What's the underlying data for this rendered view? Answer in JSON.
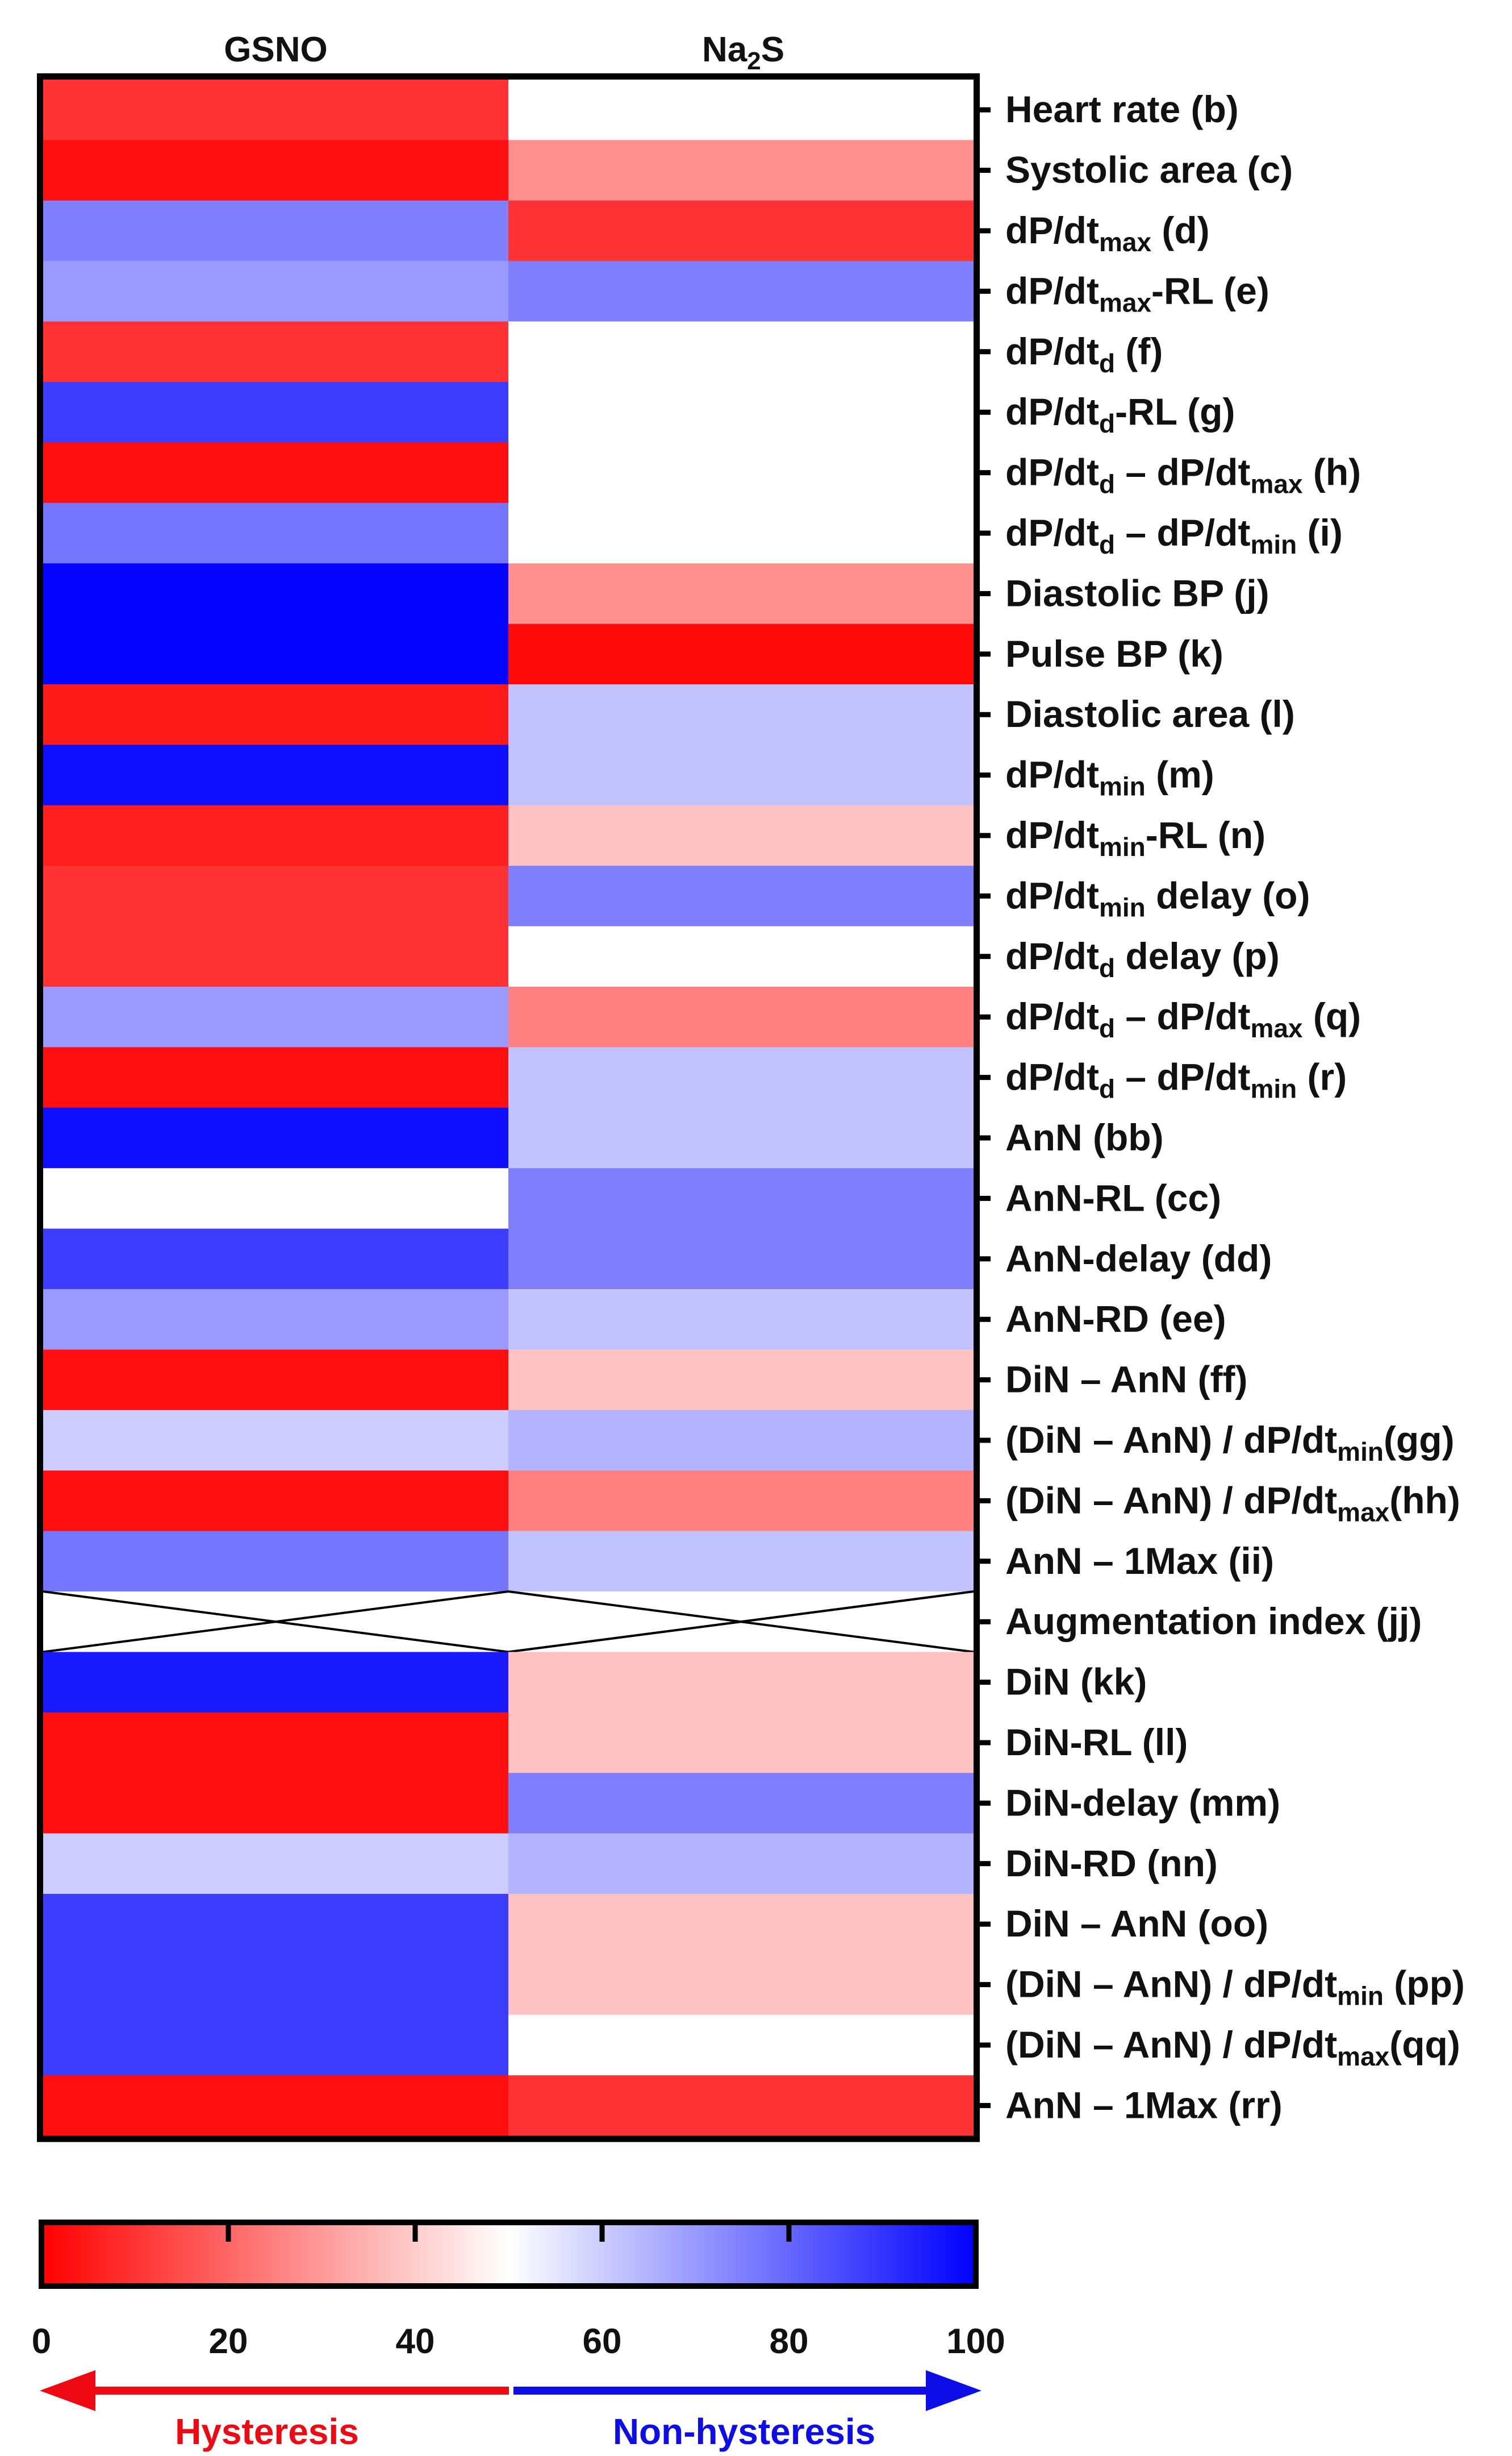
{
  "chart_data": {
    "type": "heatmap",
    "columns": [
      {
        "label": "GSNO",
        "parts": [
          {
            "t": "GSNO"
          }
        ]
      },
      {
        "label": "Na2S",
        "parts": [
          {
            "t": "Na"
          },
          {
            "t": "2",
            "sub": true
          },
          {
            "t": "S"
          }
        ]
      }
    ],
    "rows": [
      {
        "label": "Heart rate (b)",
        "parts": [
          {
            "t": "Heart rate (b)"
          }
        ],
        "values": [
          10,
          50
        ]
      },
      {
        "label": "Systolic area (c)",
        "parts": [
          {
            "t": "Systolic area (c)"
          }
        ],
        "values": [
          3,
          28
        ]
      },
      {
        "label": "dP/dtmax (d)",
        "parts": [
          {
            "t": "dP/dt"
          },
          {
            "t": "max",
            "sub": true
          },
          {
            "t": " (d)"
          }
        ],
        "values": [
          75,
          10
        ]
      },
      {
        "label": "dP/dtmax-RL (e)",
        "parts": [
          {
            "t": "dP/dt"
          },
          {
            "t": "max",
            "sub": true
          },
          {
            "t": "-RL (e)"
          }
        ],
        "values": [
          70,
          75
        ]
      },
      {
        "label": "dP/dtd (f)",
        "parts": [
          {
            "t": "dP/dt"
          },
          {
            "t": "d",
            "sub": true
          },
          {
            "t": " (f)"
          }
        ],
        "values": [
          10,
          50
        ]
      },
      {
        "label": "dP/dtd-RL (g)",
        "parts": [
          {
            "t": "dP/dt"
          },
          {
            "t": "d",
            "sub": true
          },
          {
            "t": "-RL (g)"
          }
        ],
        "values": [
          88,
          50
        ]
      },
      {
        "label": "dP/dtd – dP/dtmax (h)",
        "parts": [
          {
            "t": "dP/dt"
          },
          {
            "t": "d",
            "sub": true
          },
          {
            "t": " – dP/dt"
          },
          {
            "t": "max",
            "sub": true
          },
          {
            "t": " (h)"
          }
        ],
        "values": [
          3,
          50
        ]
      },
      {
        "label": "dP/dtd – dP/dtmin (i)",
        "parts": [
          {
            "t": "dP/dt"
          },
          {
            "t": "d",
            "sub": true
          },
          {
            "t": " – dP/dt"
          },
          {
            "t": "min",
            "sub": true
          },
          {
            "t": " (i)"
          }
        ],
        "values": [
          77,
          50
        ]
      },
      {
        "label": "Diastolic BP (j)",
        "parts": [
          {
            "t": "Diastolic BP (j)"
          }
        ],
        "values": [
          99,
          28
        ]
      },
      {
        "label": "Pulse BP (k)",
        "parts": [
          {
            "t": "Pulse BP (k)"
          }
        ],
        "values": [
          99,
          2
        ]
      },
      {
        "label": "Diastolic area (l)",
        "parts": [
          {
            "t": "Diastolic area (l)"
          }
        ],
        "values": [
          5,
          62
        ]
      },
      {
        "label": "dP/dtmin (m)",
        "parts": [
          {
            "t": "dP/dt"
          },
          {
            "t": "min",
            "sub": true
          },
          {
            "t": " (m)"
          }
        ],
        "values": [
          97,
          62
        ]
      },
      {
        "label": "dP/dtmin-RL (n)",
        "parts": [
          {
            "t": "dP/dt"
          },
          {
            "t": "min",
            "sub": true
          },
          {
            "t": "-RL (n)"
          }
        ],
        "values": [
          6,
          38
        ]
      },
      {
        "label": "dP/dtmin delay (o)",
        "parts": [
          {
            "t": "dP/dt"
          },
          {
            "t": "min",
            "sub": true
          },
          {
            "t": " delay (o)"
          }
        ],
        "values": [
          10,
          75
        ]
      },
      {
        "label": "dP/dtd delay (p)",
        "parts": [
          {
            "t": "dP/dt"
          },
          {
            "t": "d",
            "sub": true
          },
          {
            "t": " delay (p)"
          }
        ],
        "values": [
          10,
          50
        ]
      },
      {
        "label": "dP/dtd – dP/dtmax (q)",
        "parts": [
          {
            "t": "dP/dt"
          },
          {
            "t": "d",
            "sub": true
          },
          {
            "t": " – dP/dt"
          },
          {
            "t": "max",
            "sub": true
          },
          {
            "t": " (q)"
          }
        ],
        "values": [
          70,
          25
        ]
      },
      {
        "label": "dP/dtd – dP/dtmin (r)",
        "parts": [
          {
            "t": "dP/dt"
          },
          {
            "t": "d",
            "sub": true
          },
          {
            "t": " – dP/dt"
          },
          {
            "t": "min",
            "sub": true
          },
          {
            "t": " (r)"
          }
        ],
        "values": [
          3,
          62
        ]
      },
      {
        "label": "AnN (bb)",
        "parts": [
          {
            "t": "AnN (bb)"
          }
        ],
        "values": [
          97,
          62
        ]
      },
      {
        "label": "AnN-RL (cc)",
        "parts": [
          {
            "t": "AnN-RL (cc)"
          }
        ],
        "values": [
          50,
          75
        ]
      },
      {
        "label": "AnN-delay (dd)",
        "parts": [
          {
            "t": "AnN-delay (dd)"
          }
        ],
        "values": [
          88,
          75
        ]
      },
      {
        "label": "AnN-RD (ee)",
        "parts": [
          {
            "t": "AnN-RD (ee)"
          }
        ],
        "values": [
          70,
          62
        ]
      },
      {
        "label": "DiN – AnN (ff)",
        "parts": [
          {
            "t": "DiN – AnN (ff)"
          }
        ],
        "values": [
          3,
          38
        ]
      },
      {
        "label": "(DiN – AnN) / dP/dtmin(gg)",
        "parts": [
          {
            "t": "(DiN – AnN) / dP/dt"
          },
          {
            "t": "min",
            "sub": true
          },
          {
            "t": "(gg)"
          }
        ],
        "values": [
          60,
          65
        ]
      },
      {
        "label": "(DiN – AnN) / dP/dtmax(hh)",
        "parts": [
          {
            "t": "(DiN – AnN) / dP/dt"
          },
          {
            "t": "max",
            "sub": true
          },
          {
            "t": "(hh)"
          }
        ],
        "values": [
          3,
          25
        ]
      },
      {
        "label": "AnN – 1Max (ii)",
        "parts": [
          {
            "t": "AnN – 1Max (ii)"
          }
        ],
        "values": [
          77,
          62
        ]
      },
      {
        "label": "Augmentation index (jj)",
        "parts": [
          {
            "t": "Augmentation index (jj)"
          }
        ],
        "values": [
          null,
          null
        ]
      },
      {
        "label": "DiN (kk)",
        "parts": [
          {
            "t": "DiN (kk)"
          }
        ],
        "values": [
          95,
          38
        ]
      },
      {
        "label": "DiN-RL (ll)",
        "parts": [
          {
            "t": "DiN-RL (ll)"
          }
        ],
        "values": [
          3,
          38
        ]
      },
      {
        "label": "DiN-delay (mm)",
        "parts": [
          {
            "t": "DiN-delay (mm)"
          }
        ],
        "values": [
          3,
          75
        ]
      },
      {
        "label": "DiN-RD (nn)",
        "parts": [
          {
            "t": "DiN-RD (nn)"
          }
        ],
        "values": [
          60,
          65
        ]
      },
      {
        "label": "DiN – AnN (oo)",
        "parts": [
          {
            "t": "DiN – AnN (oo)"
          }
        ],
        "values": [
          88,
          38
        ]
      },
      {
        "label": "(DiN – AnN) / dP/dtmin (pp)",
        "parts": [
          {
            "t": "(DiN – AnN) / dP/dt"
          },
          {
            "t": "min",
            "sub": true
          },
          {
            "t": " (pp)"
          }
        ],
        "values": [
          88,
          38
        ]
      },
      {
        "label": "(DiN – AnN) / dP/dtmax(qq)",
        "parts": [
          {
            "t": "(DiN – AnN) / dP/dt"
          },
          {
            "t": "max",
            "sub": true
          },
          {
            "t": "(qq)"
          }
        ],
        "values": [
          88,
          50
        ]
      },
      {
        "label": "AnN – 1Max (rr)",
        "parts": [
          {
            "t": "AnN – 1Max (rr)"
          }
        ],
        "values": [
          3,
          10
        ]
      }
    ],
    "colorbar": {
      "range": [
        0,
        100
      ],
      "ticks": [
        "0",
        "20",
        "40",
        "60",
        "80",
        "100"
      ],
      "colors": {
        "low": "#ff0000",
        "mid": "#ffffff",
        "high": "#0000ff"
      }
    },
    "legend_arrows": {
      "left": {
        "label": "Hysteresis",
        "color": "#ee0a12"
      },
      "right": {
        "label": "Non-hysteresis",
        "color": "#0d0de8"
      }
    }
  }
}
